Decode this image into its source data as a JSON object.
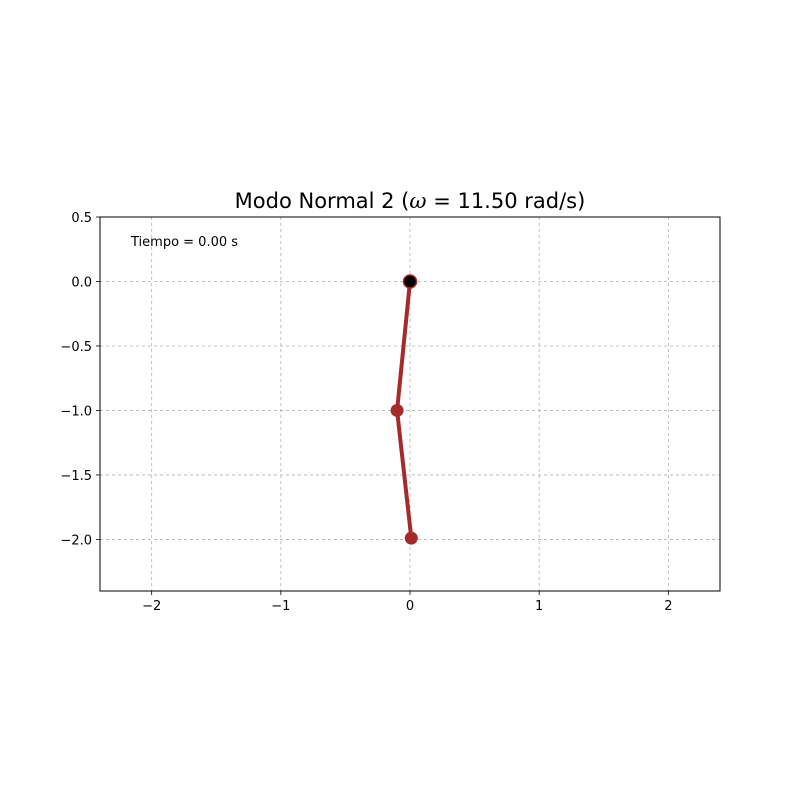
{
  "chart_data": {
    "type": "line",
    "title": "Modo Normal 2 (ω = 11.50 rad/s)",
    "title_parts": {
      "prefix": "Modo Normal 2 (",
      "symbol": "ω",
      "suffix": " = 11.50 rad/s)"
    },
    "xlabel": "",
    "ylabel": "",
    "xlim": [
      -2.4,
      2.4
    ],
    "ylim": [
      -2.4,
      0.5
    ],
    "x_ticks": [
      -2,
      -1,
      0,
      1,
      2
    ],
    "x_tick_labels": [
      "−2",
      "−1",
      "0",
      "1",
      "2"
    ],
    "y_ticks": [
      0.5,
      0.0,
      -0.5,
      -1.0,
      -1.5,
      -2.0
    ],
    "y_tick_labels": [
      "0.5",
      "0.0",
      "−0.5",
      "−1.0",
      "−1.5",
      "−2.0"
    ],
    "grid": true,
    "annotation": "Tiempo = 0.00 s",
    "pendulum": {
      "pivot": {
        "x": 0.0,
        "y": 0.0
      },
      "masses": [
        {
          "x": -0.1,
          "y": -1.0
        },
        {
          "x": 0.01,
          "y": -1.99
        }
      ]
    },
    "colors": {
      "rod": "#a52a2a",
      "mass": "#a52a2a",
      "pivot": "#000000",
      "grid": "#b0b0b0",
      "axes": "#000000"
    }
  }
}
